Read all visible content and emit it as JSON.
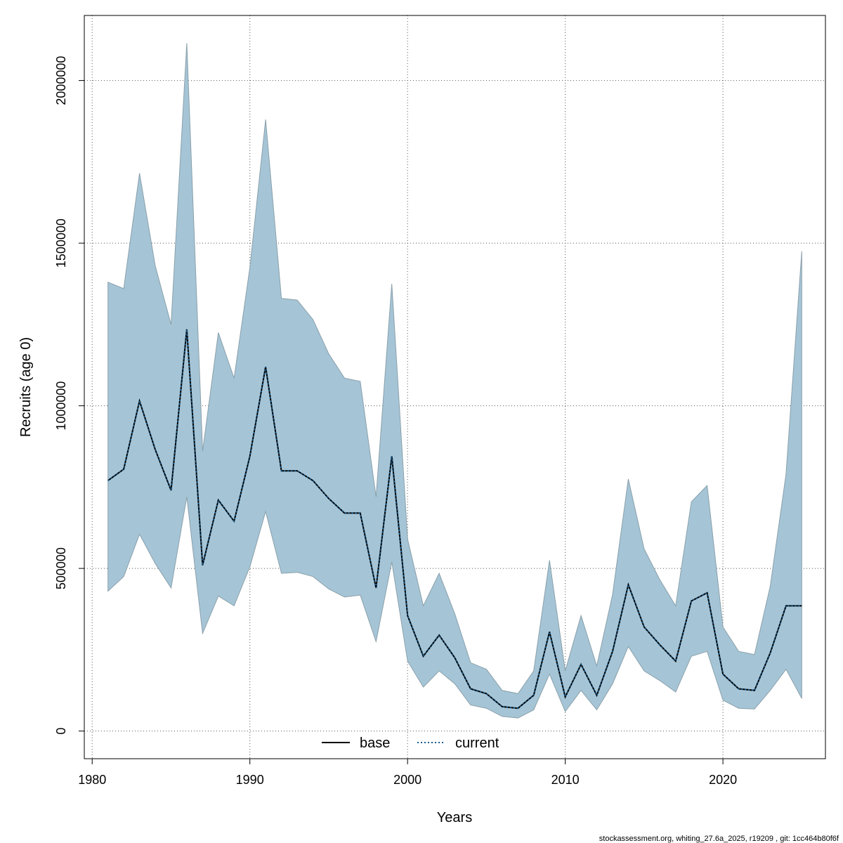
{
  "chart_data": {
    "type": "area",
    "title": "",
    "xlabel": "Years",
    "ylabel": "Recruits (age 0)",
    "xlim": [
      1979.5,
      2026.5
    ],
    "ylim": [
      -85000,
      2200000
    ],
    "xticks": [
      1980,
      1990,
      2000,
      2010,
      2020
    ],
    "yticks": [
      0,
      500000,
      1000000,
      1500000,
      2000000
    ],
    "xtick_labels": [
      "1980",
      "1990",
      "2000",
      "2010",
      "2020"
    ],
    "ytick_labels": [
      "0",
      "500000",
      "1000000",
      "1500000",
      "2000000"
    ],
    "grid": true,
    "legend_position": "bottom-center",
    "x": [
      1981,
      1982,
      1983,
      1984,
      1985,
      1986,
      1987,
      1988,
      1989,
      1990,
      1991,
      1992,
      1993,
      1994,
      1995,
      1996,
      1997,
      1998,
      1999,
      2000,
      2001,
      2002,
      2003,
      2004,
      2005,
      2006,
      2007,
      2008,
      2009,
      2010,
      2011,
      2012,
      2013,
      2014,
      2015,
      2016,
      2017,
      2018,
      2019,
      2020,
      2021,
      2022,
      2023,
      2024,
      2025
    ],
    "band": {
      "name": "confidence interval",
      "color": "#a5c5d6",
      "upper": [
        1380000,
        1360000,
        1715000,
        1430000,
        1250000,
        2115000,
        860000,
        1225000,
        1085000,
        1425000,
        1880000,
        1330000,
        1325000,
        1265000,
        1160000,
        1085000,
        1075000,
        720000,
        1375000,
        590000,
        385000,
        485000,
        360000,
        210000,
        190000,
        125000,
        115000,
        185000,
        525000,
        185000,
        355000,
        200000,
        420000,
        775000,
        560000,
        465000,
        385000,
        705000,
        755000,
        320000,
        245000,
        235000,
        445000,
        790000,
        1475000
      ],
      "lower": [
        430000,
        475000,
        605000,
        515000,
        440000,
        720000,
        300000,
        415000,
        385000,
        505000,
        675000,
        485000,
        488000,
        475000,
        437000,
        412000,
        418000,
        275000,
        520000,
        215000,
        135000,
        185000,
        145000,
        80000,
        70000,
        45000,
        40000,
        65000,
        175000,
        60000,
        125000,
        65000,
        145000,
        260000,
        185000,
        155000,
        120000,
        230000,
        245000,
        95000,
        70000,
        68000,
        125000,
        190000,
        100000
      ]
    },
    "series": [
      {
        "name": "base",
        "color": "#000000",
        "style": "solid",
        "values": [
          770000,
          805000,
          1015000,
          865000,
          740000,
          1235000,
          510000,
          710000,
          645000,
          845000,
          1120000,
          800000,
          800000,
          770000,
          715000,
          670000,
          670000,
          440000,
          845000,
          355000,
          230000,
          295000,
          225000,
          130000,
          115000,
          75000,
          70000,
          110000,
          305000,
          105000,
          205000,
          110000,
          245000,
          450000,
          320000,
          265000,
          215000,
          400000,
          425000,
          175000,
          130000,
          125000,
          240000,
          385000,
          385000
        ]
      },
      {
        "name": "current",
        "color": "#1a5a8c",
        "style": "dotted",
        "values": [
          770000,
          805000,
          1015000,
          865000,
          740000,
          1235000,
          510000,
          710000,
          645000,
          845000,
          1120000,
          800000,
          800000,
          770000,
          715000,
          670000,
          670000,
          440000,
          845000,
          355000,
          230000,
          295000,
          225000,
          130000,
          115000,
          75000,
          70000,
          110000,
          305000,
          105000,
          205000,
          110000,
          245000,
          450000,
          320000,
          265000,
          215000,
          400000,
          425000,
          175000,
          130000,
          125000,
          240000,
          385000,
          385000
        ]
      }
    ],
    "footnote": "stockassessment.org, whiting_27.6a_2025, r19209 , git: 1cc464b80f6f"
  }
}
